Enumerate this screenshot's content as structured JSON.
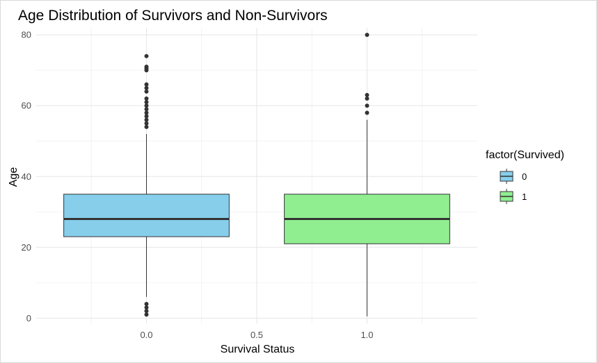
{
  "chart_data": {
    "type": "boxplot",
    "title": "Age Distribution of Survivors and Non-Survivors",
    "xlabel": "Survival Status",
    "ylabel": "Age",
    "xlim": [
      -0.5,
      1.5
    ],
    "ylim": [
      -1.5,
      82
    ],
    "x_ticks": [
      0.0,
      0.5,
      1.0
    ],
    "x_tick_labels": [
      "0.0",
      "0.5",
      "1.0"
    ],
    "y_ticks": [
      0,
      20,
      40,
      60,
      80
    ],
    "y_tick_labels": [
      "0",
      "20",
      "40",
      "60",
      "80"
    ],
    "grid": true,
    "legend": {
      "title": "factor(Survived)",
      "position": "right",
      "entries": [
        {
          "label": "0",
          "color": "#87CEEB"
        },
        {
          "label": "1",
          "color": "#90EE90"
        }
      ]
    },
    "series": [
      {
        "name": "0",
        "x": 0.0,
        "fill": "#87CEEB",
        "min": 6,
        "q1": 23,
        "median": 28,
        "q3": 35,
        "max": 52,
        "outliers": [
          1,
          2,
          3,
          4,
          54,
          55,
          56,
          57,
          58,
          59,
          60,
          61,
          62,
          64,
          65,
          66,
          70,
          70.5,
          71,
          74
        ]
      },
      {
        "name": "1",
        "x": 1.0,
        "fill": "#90EE90",
        "min": 0.5,
        "q1": 21,
        "median": 28,
        "q3": 35,
        "max": 56,
        "outliers": [
          58,
          60,
          62,
          63,
          80
        ]
      }
    ]
  }
}
